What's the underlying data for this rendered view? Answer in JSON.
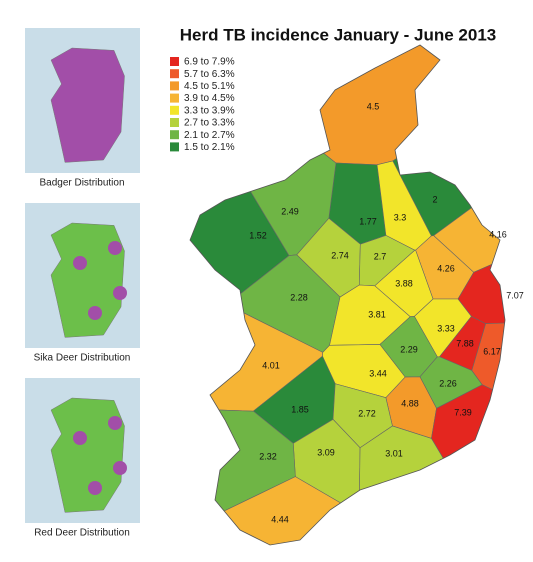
{
  "title": "Herd TB incidence January - June 2013",
  "side_maps": [
    {
      "caption": "Badger Distribution",
      "color": "#a24ea8"
    },
    {
      "caption": "Sika Deer Distribution",
      "color": "#6cbf4a"
    },
    {
      "caption": "Red Deer Distribution",
      "color": "#6cbf4a"
    }
  ],
  "legend": [
    {
      "label": "6.9 to 7.9%",
      "color": "#e4261f"
    },
    {
      "label": "5.7 to 6.3%",
      "color": "#ee5a2a"
    },
    {
      "label": "4.5 to 5.1%",
      "color": "#f39a2a"
    },
    {
      "label": "3.9 to 4.5%",
      "color": "#f6b434"
    },
    {
      "label": "3.3 to 3.9%",
      "color": "#f2e52a"
    },
    {
      "label": "2.7 to 3.3%",
      "color": "#b5d23c"
    },
    {
      "label": "2.1 to 2.7%",
      "color": "#6fb545"
    },
    {
      "label": "1.5 to 2.1%",
      "color": "#2a8a3a"
    }
  ],
  "regions": [
    {
      "value": 4.5,
      "color": "#f39a2a"
    },
    {
      "value": 2,
      "color": "#2a8a3a"
    },
    {
      "value": 1.77,
      "color": "#2a8a3a"
    },
    {
      "value": 3.3,
      "color": "#f2e52a"
    },
    {
      "value": 2.49,
      "color": "#6fb545"
    },
    {
      "value": 1.52,
      "color": "#2a8a3a"
    },
    {
      "value": 4.16,
      "color": "#f6b434"
    },
    {
      "value": 2.74,
      "color": "#b5d23c"
    },
    {
      "value": 2.7,
      "color": "#b5d23c"
    },
    {
      "value": 4.26,
      "color": "#f6b434"
    },
    {
      "value": 3.88,
      "color": "#f2e52a"
    },
    {
      "value": 7.07,
      "color": "#e4261f"
    },
    {
      "value": 2.28,
      "color": "#6fb545"
    },
    {
      "value": 3.81,
      "color": "#f2e52a"
    },
    {
      "value": 3.33,
      "color": "#f2e52a"
    },
    {
      "value": 7.88,
      "color": "#e4261f"
    },
    {
      "value": 6.17,
      "color": "#ee5a2a"
    },
    {
      "value": 2.29,
      "color": "#6fb545"
    },
    {
      "value": 4.01,
      "color": "#f6b434"
    },
    {
      "value": 3.44,
      "color": "#f2e52a"
    },
    {
      "value": 2.26,
      "color": "#6fb545"
    },
    {
      "value": 4.88,
      "color": "#f39a2a"
    },
    {
      "value": 1.85,
      "color": "#2a8a3a"
    },
    {
      "value": 2.72,
      "color": "#b5d23c"
    },
    {
      "value": 7.39,
      "color": "#e4261f"
    },
    {
      "value": 3.09,
      "color": "#b5d23c"
    },
    {
      "value": 3.01,
      "color": "#b5d23c"
    },
    {
      "value": 2.32,
      "color": "#6fb545"
    },
    {
      "value": 4.44,
      "color": "#f6b434"
    }
  ]
}
